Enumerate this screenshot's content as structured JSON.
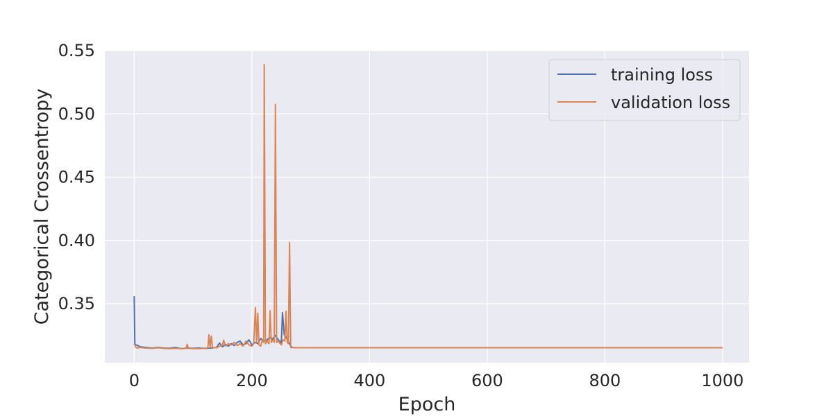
{
  "chart_data": {
    "type": "line",
    "xlabel": "Epoch",
    "ylabel": "Categorical Crossentropy",
    "xlim": [
      -50,
      1045
    ],
    "ylim": [
      0.3035,
      0.55
    ],
    "xticks": [
      0,
      200,
      400,
      600,
      800,
      1000
    ],
    "yticks": [
      0.35,
      0.4,
      0.45,
      0.5,
      0.55
    ],
    "xtick_labels": [
      "0",
      "200",
      "400",
      "600",
      "800",
      "1000"
    ],
    "ytick_labels": [
      "0.35",
      "0.40",
      "0.45",
      "0.50",
      "0.55"
    ],
    "grid": true,
    "legend_position": "top-right",
    "series": [
      {
        "name": "training loss",
        "color": "#4c72b0",
        "points": [
          [
            0,
            0.356
          ],
          [
            1,
            0.3185
          ],
          [
            3,
            0.3175
          ],
          [
            6,
            0.317
          ],
          [
            10,
            0.316
          ],
          [
            20,
            0.3155
          ],
          [
            30,
            0.315
          ],
          [
            40,
            0.3155
          ],
          [
            50,
            0.315
          ],
          [
            60,
            0.3148
          ],
          [
            70,
            0.3155
          ],
          [
            80,
            0.3145
          ],
          [
            90,
            0.315
          ],
          [
            100,
            0.3148
          ],
          [
            110,
            0.315
          ],
          [
            120,
            0.3148
          ],
          [
            130,
            0.315
          ],
          [
            140,
            0.3155
          ],
          [
            145,
            0.319
          ],
          [
            150,
            0.316
          ],
          [
            155,
            0.318
          ],
          [
            160,
            0.3165
          ],
          [
            165,
            0.3185
          ],
          [
            170,
            0.317
          ],
          [
            175,
            0.3195
          ],
          [
            180,
            0.3205
          ],
          [
            185,
            0.3175
          ],
          [
            190,
            0.3185
          ],
          [
            195,
            0.3215
          ],
          [
            200,
            0.3175
          ],
          [
            205,
            0.3195
          ],
          [
            210,
            0.3185
          ],
          [
            215,
            0.3225
          ],
          [
            220,
            0.3205
          ],
          [
            225,
            0.321
          ],
          [
            230,
            0.3235
          ],
          [
            235,
            0.322
          ],
          [
            240,
            0.325
          ],
          [
            245,
            0.3215
          ],
          [
            250,
            0.319
          ],
          [
            252,
            0.343
          ],
          [
            255,
            0.3255
          ],
          [
            260,
            0.322
          ],
          [
            265,
            0.3175
          ],
          [
            268,
            0.3155
          ],
          [
            275,
            0.3153
          ],
          [
            300,
            0.3153
          ],
          [
            400,
            0.3153
          ],
          [
            500,
            0.3153
          ],
          [
            600,
            0.3153
          ],
          [
            700,
            0.3153
          ],
          [
            800,
            0.3153
          ],
          [
            900,
            0.3153
          ],
          [
            1000,
            0.3153
          ]
        ]
      },
      {
        "name": "validation loss",
        "color": "#dd8452",
        "points": [
          [
            0,
            0.3185
          ],
          [
            2,
            0.316
          ],
          [
            5,
            0.315
          ],
          [
            10,
            0.3155
          ],
          [
            20,
            0.315
          ],
          [
            30,
            0.3148
          ],
          [
            40,
            0.3152
          ],
          [
            50,
            0.3148
          ],
          [
            60,
            0.3145
          ],
          [
            70,
            0.3148
          ],
          [
            80,
            0.3145
          ],
          [
            88,
            0.3148
          ],
          [
            90,
            0.318
          ],
          [
            92,
            0.3148
          ],
          [
            100,
            0.3145
          ],
          [
            110,
            0.3145
          ],
          [
            120,
            0.3148
          ],
          [
            125,
            0.3145
          ],
          [
            127,
            0.3255
          ],
          [
            129,
            0.3155
          ],
          [
            131,
            0.3245
          ],
          [
            133,
            0.3155
          ],
          [
            140,
            0.3152
          ],
          [
            150,
            0.3175
          ],
          [
            152,
            0.3212
          ],
          [
            155,
            0.3165
          ],
          [
            160,
            0.3185
          ],
          [
            165,
            0.3175
          ],
          [
            170,
            0.3195
          ],
          [
            175,
            0.317
          ],
          [
            180,
            0.3185
          ],
          [
            185,
            0.3165
          ],
          [
            190,
            0.3205
          ],
          [
            195,
            0.3175
          ],
          [
            200,
            0.3165
          ],
          [
            203,
            0.3185
          ],
          [
            206,
            0.347
          ],
          [
            208,
            0.319
          ],
          [
            210,
            0.3425
          ],
          [
            212,
            0.3175
          ],
          [
            215,
            0.3165
          ],
          [
            218,
            0.3215
          ],
          [
            220,
            0.3195
          ],
          [
            221,
            0.539
          ],
          [
            223,
            0.3185
          ],
          [
            226,
            0.3205
          ],
          [
            229,
            0.3185
          ],
          [
            231,
            0.3445
          ],
          [
            233,
            0.3195
          ],
          [
            236,
            0.3215
          ],
          [
            238,
            0.3195
          ],
          [
            240,
            0.5075
          ],
          [
            242,
            0.3195
          ],
          [
            245,
            0.3205
          ],
          [
            248,
            0.3185
          ],
          [
            250,
            0.3175
          ],
          [
            253,
            0.3215
          ],
          [
            256,
            0.3205
          ],
          [
            258,
            0.344
          ],
          [
            260,
            0.3195
          ],
          [
            262,
            0.3185
          ],
          [
            264,
            0.3985
          ],
          [
            266,
            0.3155
          ],
          [
            270,
            0.3153
          ],
          [
            300,
            0.3153
          ],
          [
            400,
            0.3153
          ],
          [
            500,
            0.3153
          ],
          [
            600,
            0.3153
          ],
          [
            700,
            0.3153
          ],
          [
            800,
            0.3153
          ],
          [
            900,
            0.3153
          ],
          [
            1000,
            0.3153
          ]
        ]
      }
    ]
  }
}
